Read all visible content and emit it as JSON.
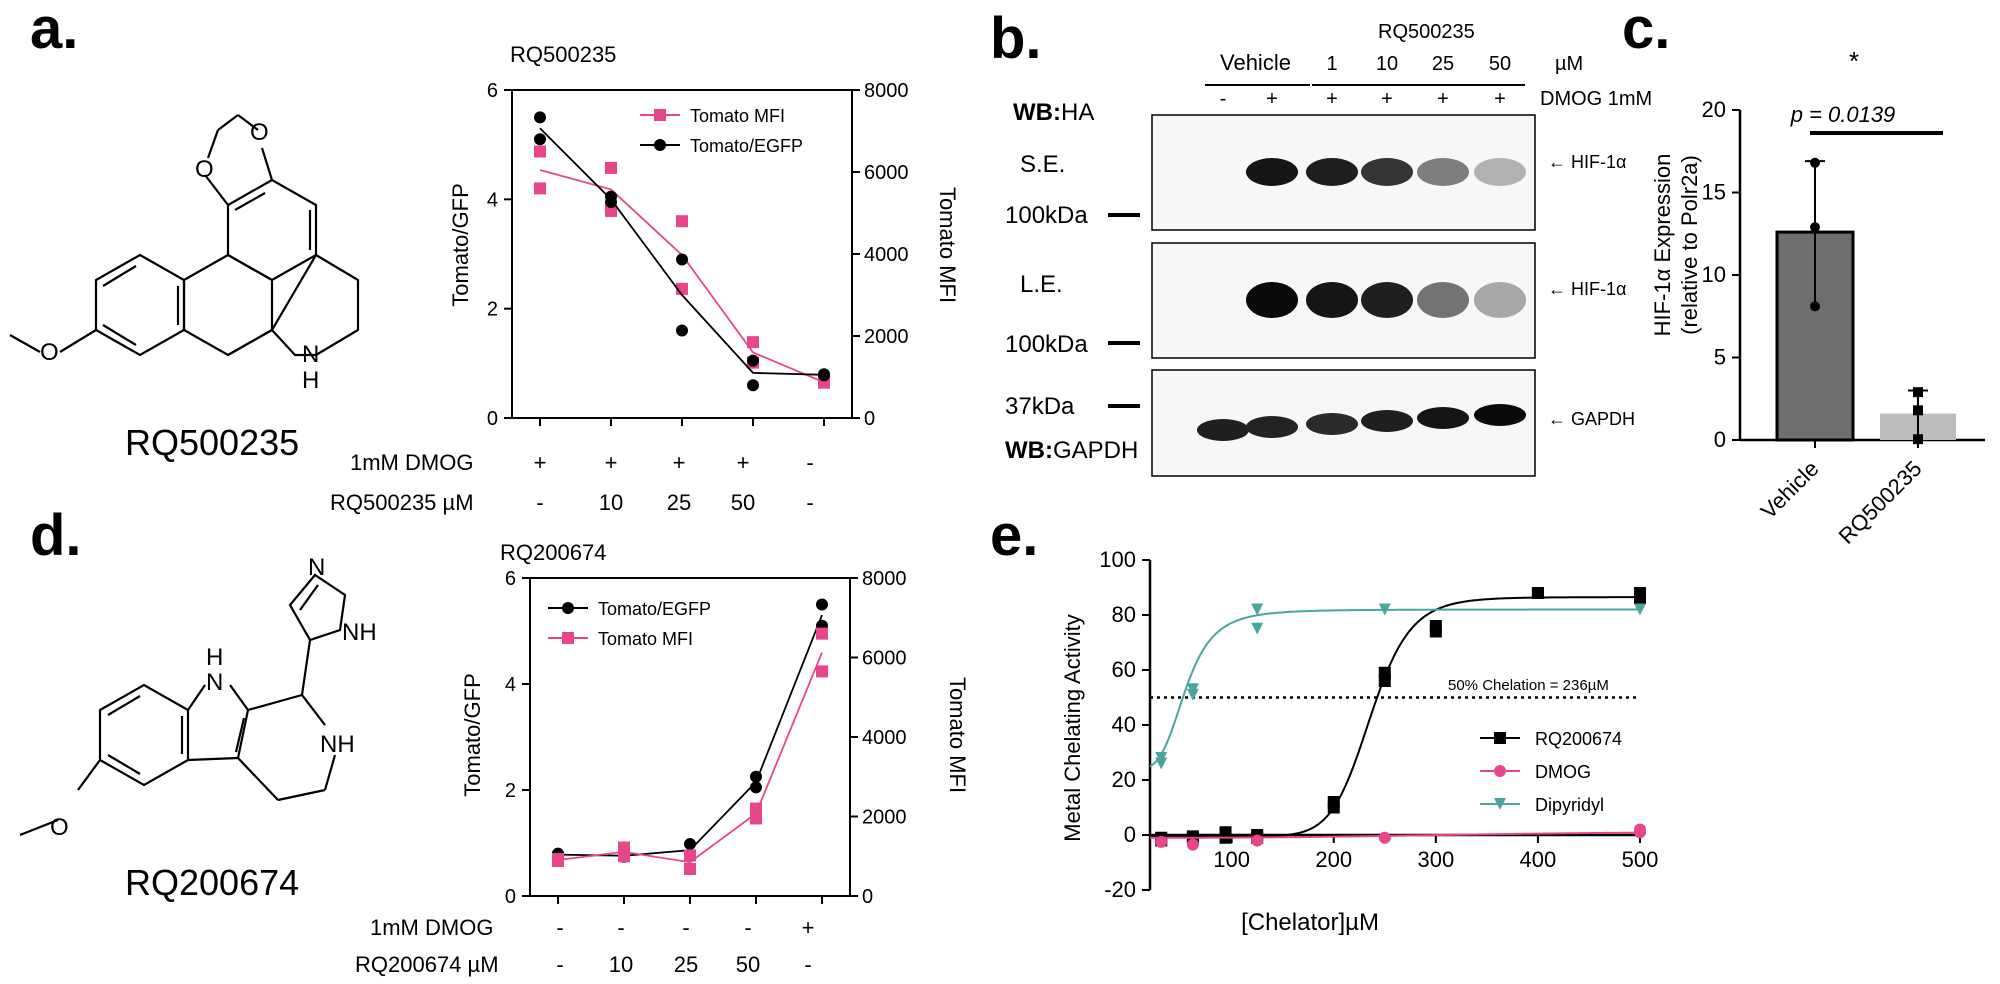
{
  "panel_labels": {
    "a": "a.",
    "b": "b.",
    "c": "c.",
    "d": "d.",
    "e": "e."
  },
  "colors": {
    "pink": "#e8468a",
    "black": "#000000",
    "teal": "#4aa59e",
    "bar_dark": "#6e6e6e",
    "bar_light": "#bdbdbd"
  },
  "panel_a": {
    "compound_name": "RQ500235",
    "structure_atoms": [
      "O",
      "O",
      "O",
      "N",
      "H"
    ],
    "row_labels": [
      "1mM DMOG",
      "RQ500235 µM"
    ],
    "dmog_marks": [
      "+",
      "+",
      "+",
      "+",
      "-"
    ],
    "conc_marks": [
      "-",
      "10",
      "25",
      "50",
      "-"
    ]
  },
  "panel_d": {
    "compound_name": "RQ200674",
    "structure_atoms": [
      "N",
      "NH",
      "H",
      "N",
      "NH",
      "O"
    ],
    "row_labels": [
      "1mM DMOG",
      "RQ200674 µM"
    ],
    "dmog_marks": [
      "-",
      "-",
      "-",
      "-",
      "+"
    ],
    "conc_marks": [
      "-",
      "10",
      "25",
      "50",
      "-"
    ]
  },
  "panel_b": {
    "top_label": "RQ500235",
    "unit": "µM",
    "dmog_label": "DMOG 1mM",
    "vehicle_label": "Vehicle",
    "conc_labels": [
      "1",
      "10",
      "25",
      "50"
    ],
    "dmog_signs": [
      "-",
      "+",
      "+",
      "+",
      "+",
      "+"
    ],
    "wb_ha_bold": "WB:",
    "wb_ha_rest": "HA",
    "wb_gapdh_bold": "WB:",
    "wb_gapdh_rest": "GAPDH",
    "se_label": "S.E.",
    "le_label": "L.E.",
    "marker_100_a": "100kDa",
    "marker_100_b": "100kDa",
    "marker_37": "37kDa",
    "hif_label_1": "← HIF-1α",
    "hif_label_2": "← HIF-1α",
    "gapdh_label": "← GAPDH",
    "band_intensity_se": [
      0,
      0.95,
      0.9,
      0.8,
      0.45,
      0.2
    ],
    "band_intensity_le": [
      0,
      1.0,
      0.95,
      0.9,
      0.5,
      0.25
    ],
    "band_intensity_gapdh": [
      0.9,
      0.88,
      0.85,
      0.9,
      0.95,
      1.0
    ]
  },
  "chart_data": [
    {
      "id": "a_chart",
      "type": "line",
      "title": "RQ500235",
      "ylabel": "Tomato/GFP",
      "y2label": "Tomato MFI",
      "ylim": [
        0,
        6
      ],
      "y2lim": [
        0,
        8000
      ],
      "yticks": [
        "0",
        "2",
        "4",
        "6"
      ],
      "y2ticks": [
        "0",
        "2000",
        "4000",
        "6000",
        "8000"
      ],
      "categories": [
        "1",
        "2",
        "3",
        "4",
        "5"
      ],
      "series": [
        {
          "name": "Tomato MFI",
          "color": "#e8468a",
          "marker": "square",
          "axis": "right",
          "points": [
            [
              1,
              6500
            ],
            [
              1,
              5600
            ],
            [
              2,
              6100
            ],
            [
              2,
              5050
            ],
            [
              3,
              4800
            ],
            [
              3,
              3150
            ],
            [
              4,
              1850
            ],
            [
              4,
              1350
            ],
            [
              5,
              880
            ],
            [
              5,
              860
            ]
          ],
          "line": [
            6050,
            5575,
            3975,
            1600,
            870
          ]
        },
        {
          "name": "Tomato/EGFP",
          "color": "#000000",
          "marker": "circle",
          "axis": "left",
          "points": [
            [
              1,
              5.5
            ],
            [
              1,
              5.1
            ],
            [
              2,
              4.05
            ],
            [
              2,
              3.95
            ],
            [
              3,
              2.9
            ],
            [
              3,
              1.6
            ],
            [
              4,
              1.05
            ],
            [
              4,
              0.6
            ],
            [
              5,
              0.8
            ],
            [
              5,
              0.78
            ]
          ],
          "line": [
            5.3,
            4.0,
            2.25,
            0.825,
            0.79
          ]
        }
      ]
    },
    {
      "id": "d_chart",
      "type": "line",
      "title": "RQ200674",
      "ylabel": "Tomato/GFP",
      "y2label": "Tomato MFI",
      "ylim": [
        0,
        6
      ],
      "y2lim": [
        0,
        8000
      ],
      "yticks": [
        "0",
        "2",
        "4",
        "6"
      ],
      "y2ticks": [
        "0",
        "2000",
        "4000",
        "6000",
        "8000"
      ],
      "categories": [
        "1",
        "2",
        "3",
        "4",
        "5"
      ],
      "series": [
        {
          "name": "Tomato/EGFP",
          "color": "#000000",
          "marker": "circle",
          "axis": "left",
          "points": [
            [
              1,
              0.8
            ],
            [
              1,
              0.76
            ],
            [
              2,
              0.78
            ],
            [
              2,
              0.74
            ],
            [
              3,
              0.98
            ],
            [
              3,
              0.75
            ],
            [
              4,
              2.25
            ],
            [
              4,
              2.05
            ],
            [
              5,
              5.5
            ],
            [
              5,
              5.1
            ]
          ],
          "line": [
            0.78,
            0.76,
            0.865,
            2.15,
            5.3
          ]
        },
        {
          "name": "Tomato MFI",
          "color": "#e8468a",
          "marker": "square",
          "axis": "right",
          "points": [
            [
              1,
              930
            ],
            [
              1,
              880
            ],
            [
              2,
              1220
            ],
            [
              2,
              1000
            ],
            [
              3,
              1020
            ],
            [
              3,
              680
            ],
            [
              4,
              2200
            ],
            [
              4,
              1950
            ],
            [
              5,
              6600
            ],
            [
              5,
              5650
            ]
          ],
          "line": [
            905,
            1110,
            850,
            2075,
            6125
          ]
        }
      ]
    },
    {
      "id": "c_chart",
      "type": "bar",
      "ylabel": "HIF-1α Expression",
      "ylabel2": "(relative to Polr2a)",
      "ylim": [
        0,
        20
      ],
      "yticks": [
        "0",
        "5",
        "10",
        "15",
        "20"
      ],
      "categories": [
        "Vehicle",
        "RQ500235"
      ],
      "values": [
        12.6,
        1.6
      ],
      "errors": [
        4.3,
        1.4
      ],
      "points": [
        [
          16.8,
          12.9,
          8.1
        ],
        [
          2.9,
          1.8,
          0.05
        ]
      ],
      "pvalue": "p = 0.0139",
      "star": "*"
    },
    {
      "id": "e_chart",
      "type": "scatter",
      "xlabel": "[Chelator]µM",
      "ylabel": "Metal Chelating Activity",
      "xlim": [
        20,
        500
      ],
      "ylim": [
        -20,
        100
      ],
      "xticks": [
        "100",
        "200",
        "300",
        "400",
        "500"
      ],
      "yticks": [
        "-20",
        "0",
        "20",
        "40",
        "60",
        "80",
        "100"
      ],
      "threshold": 50,
      "threshold_label": "50% Chelation = 236µM",
      "series": [
        {
          "name": "RQ200674",
          "color": "#000000",
          "marker": "square",
          "points": [
            [
              31,
              -2
            ],
            [
              31,
              -1
            ],
            [
              62,
              -1
            ],
            [
              62,
              -0.5
            ],
            [
              94,
              -1
            ],
            [
              94,
              1
            ],
            [
              125,
              -1
            ],
            [
              125,
              0
            ],
            [
              200,
              10
            ],
            [
              200,
              12
            ],
            [
              250,
              56
            ],
            [
              250,
              59
            ],
            [
              300,
              74
            ],
            [
              300,
              76
            ],
            [
              400,
              88
            ],
            [
              400,
              88
            ],
            [
              500,
              86
            ],
            [
              500,
              88
            ]
          ],
          "fit": {
            "bottom": -0.5,
            "top": 86.5,
            "ec50": 236,
            "hill": 12
          }
        },
        {
          "name": "DMOG",
          "color": "#e8468a",
          "marker": "circle",
          "points": [
            [
              31,
              -2.5
            ],
            [
              62,
              -3.5
            ],
            [
              125,
              -2
            ],
            [
              250,
              -1
            ],
            [
              500,
              1
            ],
            [
              500,
              2
            ]
          ],
          "fit": {
            "bottom": -1,
            "top": 1.5,
            "ec50": 350,
            "hill": 3
          }
        },
        {
          "name": "Dipyridyl",
          "color": "#4aa59e",
          "marker": "triangle",
          "points": [
            [
              31,
              26
            ],
            [
              31,
              28
            ],
            [
              62,
              51
            ],
            [
              62,
              53
            ],
            [
              125,
              75
            ],
            [
              125,
              82
            ],
            [
              250,
              82
            ],
            [
              500,
              82
            ]
          ],
          "fit": {
            "bottom": 24,
            "top": 82,
            "ec50": 55,
            "hill": 4
          }
        }
      ]
    }
  ]
}
